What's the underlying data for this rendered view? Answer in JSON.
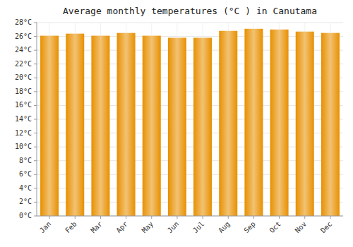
{
  "chart_data": {
    "type": "bar",
    "title": "Average monthly temperatures (°C ) in Canutama",
    "categories": [
      "Jan",
      "Feb",
      "Mar",
      "Apr",
      "May",
      "Jun",
      "Jul",
      "Aug",
      "Sep",
      "Oct",
      "Nov",
      "Dec"
    ],
    "values": [
      26.1,
      26.4,
      26.1,
      26.5,
      26.1,
      25.8,
      25.8,
      26.8,
      27.1,
      27.0,
      26.7,
      26.5
    ],
    "color": "#E89000",
    "ylim": [
      0,
      28
    ],
    "yticks": [
      {
        "value": 0,
        "label": "0°C"
      },
      {
        "value": 2,
        "label": "2°C"
      },
      {
        "value": 4,
        "label": "4°C"
      },
      {
        "value": 6,
        "label": "6°C"
      },
      {
        "value": 8,
        "label": "8°C"
      },
      {
        "value": 10,
        "label": "10°C"
      },
      {
        "value": 12,
        "label": "12°C"
      },
      {
        "value": 14,
        "label": "14°C"
      },
      {
        "value": 16,
        "label": "16°C"
      },
      {
        "value": 18,
        "label": "18°C"
      },
      {
        "value": 20,
        "label": "20°C"
      },
      {
        "value": 22,
        "label": "22°C"
      },
      {
        "value": 24,
        "label": "24°C"
      },
      {
        "value": 26,
        "label": "26°C"
      },
      {
        "value": 28,
        "label": "28°C"
      }
    ],
    "grid": true
  }
}
